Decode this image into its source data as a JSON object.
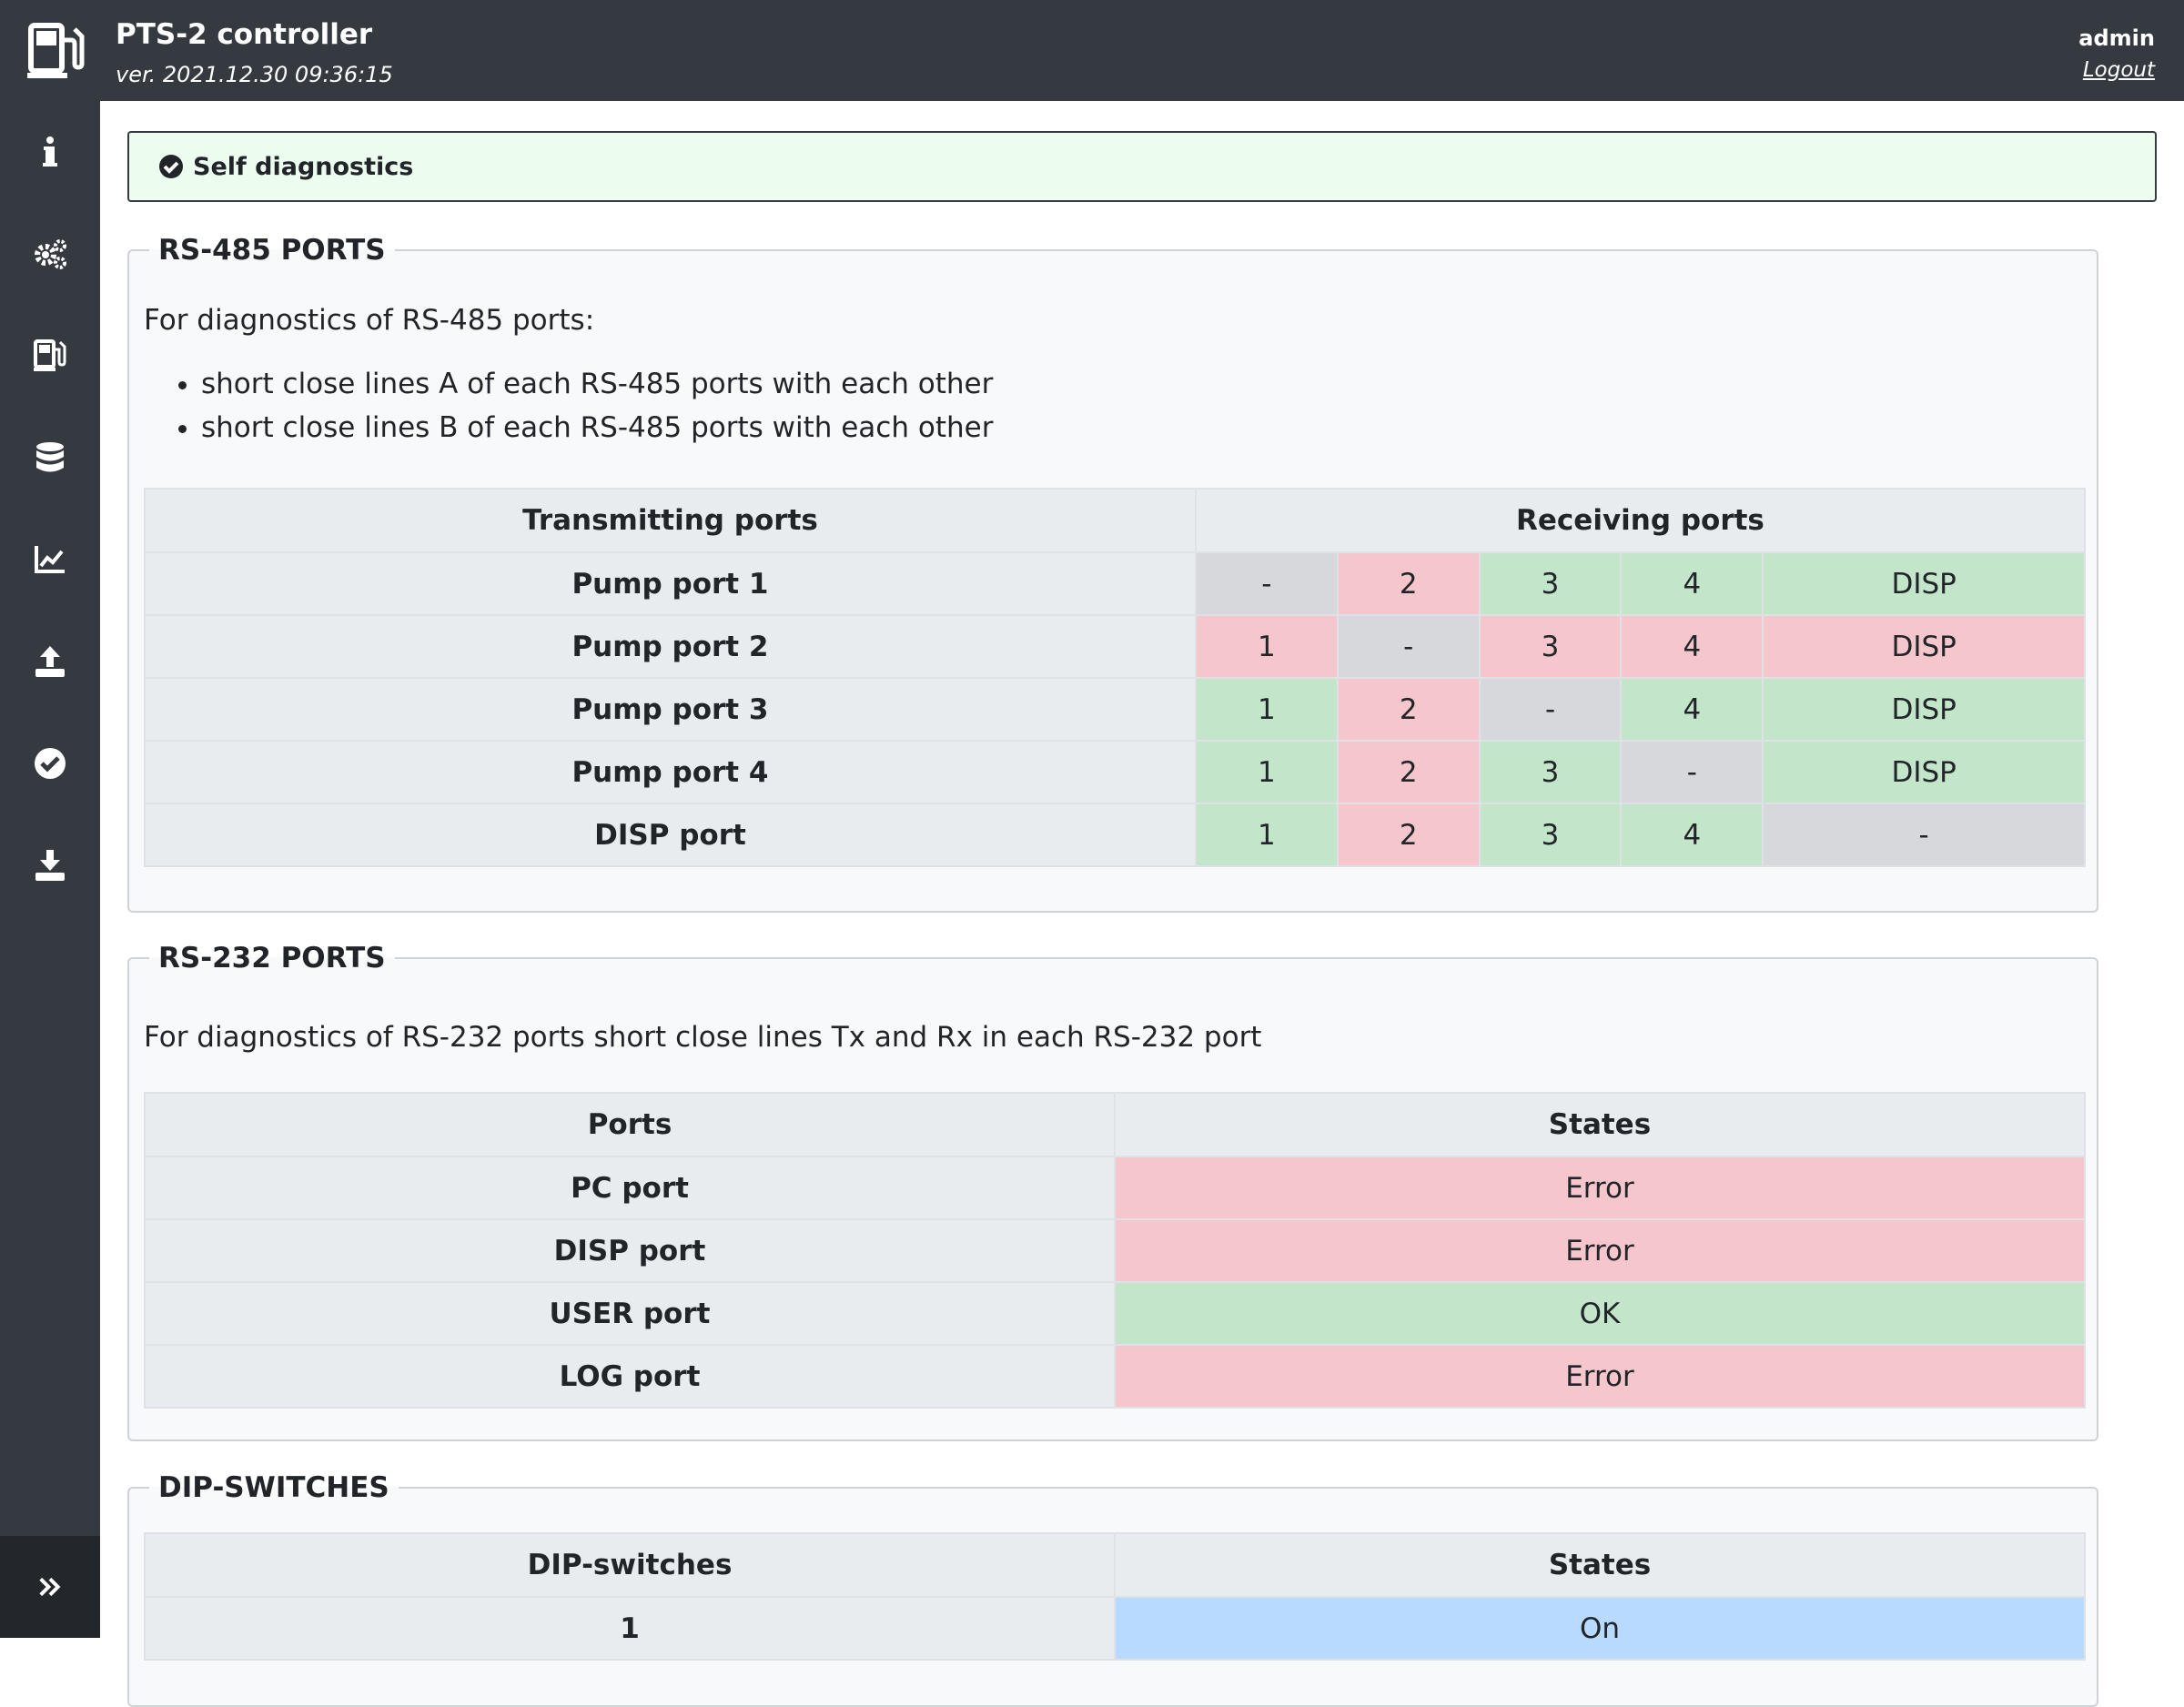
{
  "header": {
    "title": "PTS-2 controller",
    "version": "ver. 2021.12.30 09:36:15",
    "user": "admin",
    "logout": "Logout"
  },
  "sidebar": {
    "items": [
      {
        "icon": "info-icon"
      },
      {
        "icon": "settings-gears-icon"
      },
      {
        "icon": "fuel-pump-icon"
      },
      {
        "icon": "database-icon"
      },
      {
        "icon": "chart-line-icon"
      },
      {
        "icon": "upload-icon"
      },
      {
        "icon": "check-circle-icon",
        "active": true
      },
      {
        "icon": "download-icon"
      }
    ],
    "expand_icon": "double-chevron-right-icon"
  },
  "alert": {
    "text": "Self diagnostics"
  },
  "rs485": {
    "legend": "RS-485 PORTS",
    "intro": "For diagnostics of RS-485 ports:",
    "bullets": [
      "short close lines A of each RS-485 ports with each other",
      "short close lines B of each RS-485 ports with each other"
    ],
    "headers": {
      "transmitting": "Transmitting ports",
      "receiving": "Receiving ports"
    },
    "rows": [
      {
        "label": "Pump port 1",
        "cells": [
          {
            "v": "-",
            "s": "grey"
          },
          {
            "v": "2",
            "s": "red"
          },
          {
            "v": "3",
            "s": "green"
          },
          {
            "v": "4",
            "s": "green"
          },
          {
            "v": "DISP",
            "s": "green"
          }
        ]
      },
      {
        "label": "Pump port 2",
        "cells": [
          {
            "v": "1",
            "s": "red"
          },
          {
            "v": "-",
            "s": "grey"
          },
          {
            "v": "3",
            "s": "red"
          },
          {
            "v": "4",
            "s": "red"
          },
          {
            "v": "DISP",
            "s": "red"
          }
        ]
      },
      {
        "label": "Pump port 3",
        "cells": [
          {
            "v": "1",
            "s": "green"
          },
          {
            "v": "2",
            "s": "red"
          },
          {
            "v": "-",
            "s": "grey"
          },
          {
            "v": "4",
            "s": "green"
          },
          {
            "v": "DISP",
            "s": "green"
          }
        ]
      },
      {
        "label": "Pump port 4",
        "cells": [
          {
            "v": "1",
            "s": "green"
          },
          {
            "v": "2",
            "s": "red"
          },
          {
            "v": "3",
            "s": "green"
          },
          {
            "v": "-",
            "s": "grey"
          },
          {
            "v": "DISP",
            "s": "green"
          }
        ]
      },
      {
        "label": "DISP port",
        "cells": [
          {
            "v": "1",
            "s": "green"
          },
          {
            "v": "2",
            "s": "red"
          },
          {
            "v": "3",
            "s": "green"
          },
          {
            "v": "4",
            "s": "green"
          },
          {
            "v": "-",
            "s": "grey"
          }
        ]
      }
    ]
  },
  "rs232": {
    "legend": "RS-232 PORTS",
    "intro": "For diagnostics of RS-232 ports short close lines Tx and Rx in each RS-232 port",
    "headers": {
      "ports": "Ports",
      "states": "States"
    },
    "rows": [
      {
        "label": "PC port",
        "state": "Error",
        "s": "red"
      },
      {
        "label": "DISP port",
        "state": "Error",
        "s": "red"
      },
      {
        "label": "USER port",
        "state": "OK",
        "s": "green"
      },
      {
        "label": "LOG port",
        "state": "Error",
        "s": "red"
      }
    ]
  },
  "dip": {
    "legend": "DIP-SWITCHES",
    "headers": {
      "switches": "DIP-switches",
      "states": "States"
    },
    "rows": [
      {
        "label": "1",
        "state": "On",
        "s": "blue"
      }
    ]
  }
}
